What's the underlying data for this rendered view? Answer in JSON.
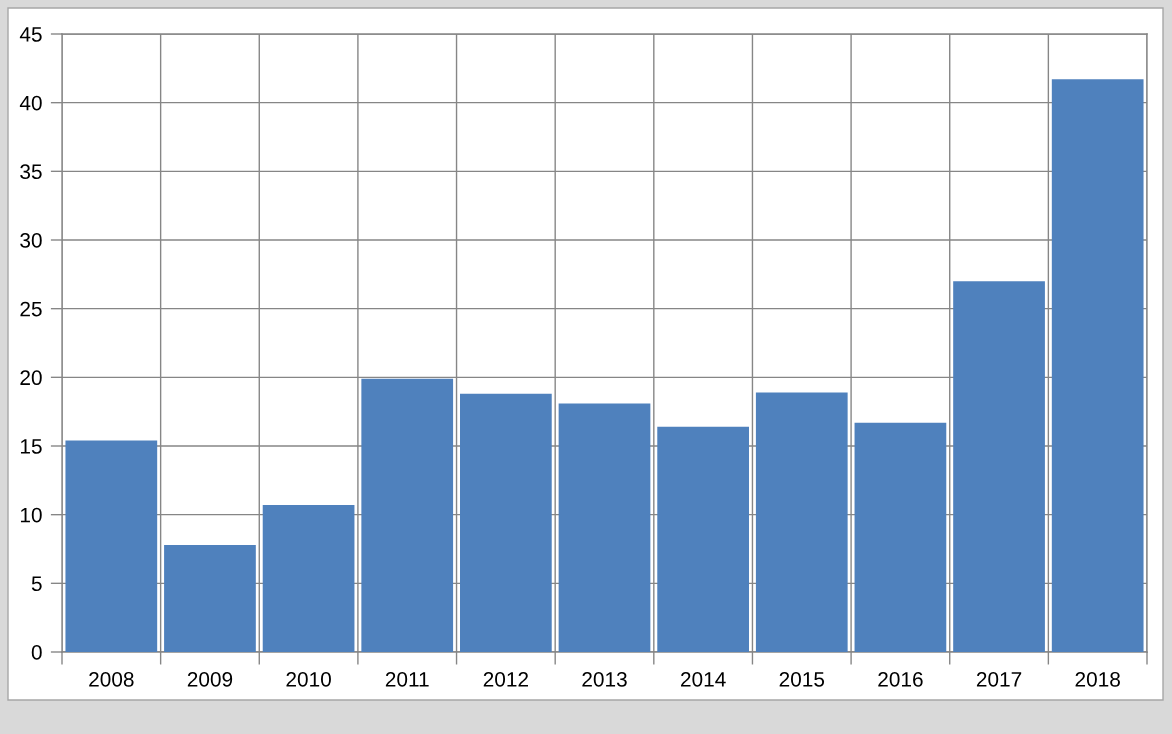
{
  "chart_data": {
    "type": "bar",
    "categories": [
      "2008",
      "2009",
      "2010",
      "2011",
      "2012",
      "2013",
      "2014",
      "2015",
      "2016",
      "2017",
      "2018"
    ],
    "values": [
      15.4,
      7.8,
      10.7,
      19.9,
      18.8,
      18.1,
      16.4,
      18.9,
      16.7,
      27.0,
      41.7
    ],
    "color": "#4f81bd",
    "ylim": [
      0,
      45
    ],
    "yticks": [
      0,
      5,
      10,
      15,
      20,
      25,
      30,
      35,
      40,
      45
    ],
    "grid": true
  }
}
